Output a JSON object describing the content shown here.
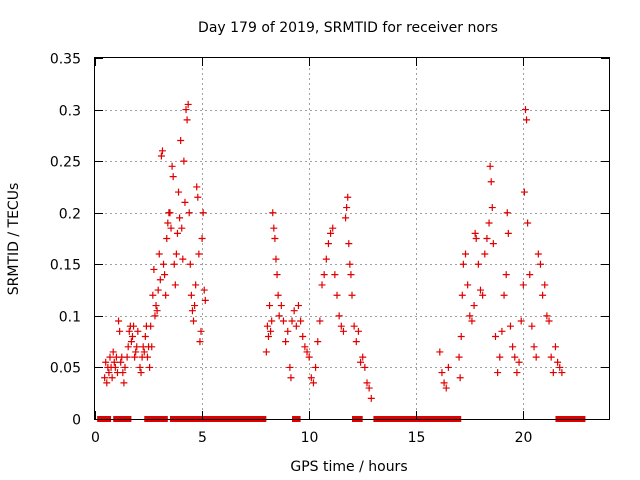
{
  "chart_data": {
    "type": "scatter",
    "title": "Day 179 of 2019, SRMTID for receiver nors",
    "xlabel": "GPS time / hours",
    "ylabel": "SRMTID / TECUs",
    "xlim": [
      0,
      24
    ],
    "ylim": [
      0,
      0.35
    ],
    "xticks": [
      {
        "value": 0,
        "label": "0"
      },
      {
        "value": 5,
        "label": "5"
      },
      {
        "value": 10,
        "label": "10"
      },
      {
        "value": 15,
        "label": "15"
      },
      {
        "value": 20,
        "label": "20"
      }
    ],
    "yticks": [
      {
        "value": 0,
        "label": "0"
      },
      {
        "value": 0.05,
        "label": "0.05"
      },
      {
        "value": 0.1,
        "label": "0.1"
      },
      {
        "value": 0.15,
        "label": "0.15"
      },
      {
        "value": 0.2,
        "label": "0.2"
      },
      {
        "value": 0.25,
        "label": "0.25"
      },
      {
        "value": 0.3,
        "label": "0.3"
      },
      {
        "value": 0.35,
        "label": "0.35"
      }
    ],
    "grid": true,
    "marker": "+",
    "color": "#e00000",
    "zero_intervals": [
      [
        0.1,
        0.75
      ],
      [
        0.85,
        1.7
      ],
      [
        2.3,
        3.4
      ],
      [
        3.5,
        8.0
      ],
      [
        9.2,
        9.6
      ],
      [
        12.0,
        12.5
      ],
      [
        13.0,
        17.1
      ],
      [
        21.5,
        22.9
      ]
    ],
    "series": [
      {
        "name": "SRMTID",
        "points": [
          [
            0.45,
            0.04
          ],
          [
            0.5,
            0.055
          ],
          [
            0.55,
            0.035
          ],
          [
            0.6,
            0.05
          ],
          [
            0.65,
            0.045
          ],
          [
            0.7,
            0.06
          ],
          [
            0.75,
            0.05
          ],
          [
            0.8,
            0.04
          ],
          [
            0.85,
            0.065
          ],
          [
            0.9,
            0.055
          ],
          [
            0.95,
            0.05
          ],
          [
            1.0,
            0.06
          ],
          [
            1.05,
            0.045
          ],
          [
            1.1,
            0.095
          ],
          [
            1.15,
            0.085
          ],
          [
            1.2,
            0.055
          ],
          [
            1.25,
            0.06
          ],
          [
            1.3,
            0.045
          ],
          [
            1.35,
            0.035
          ],
          [
            1.4,
            0.05
          ],
          [
            1.5,
            0.06
          ],
          [
            1.55,
            0.07
          ],
          [
            1.6,
            0.085
          ],
          [
            1.65,
            0.09
          ],
          [
            1.7,
            0.075
          ],
          [
            1.75,
            0.08
          ],
          [
            1.8,
            0.09
          ],
          [
            1.85,
            0.06
          ],
          [
            1.9,
            0.065
          ],
          [
            1.95,
            0.07
          ],
          [
            2.0,
            0.085
          ],
          [
            2.1,
            0.05
          ],
          [
            2.15,
            0.045
          ],
          [
            2.2,
            0.06
          ],
          [
            2.25,
            0.07
          ],
          [
            2.3,
            0.065
          ],
          [
            2.35,
            0.08
          ],
          [
            2.4,
            0.09
          ],
          [
            2.45,
            0.06
          ],
          [
            2.5,
            0.07
          ],
          [
            2.55,
            0.05
          ],
          [
            2.6,
            0.09
          ],
          [
            2.65,
            0.07
          ],
          [
            2.7,
            0.12
          ],
          [
            2.75,
            0.145
          ],
          [
            2.8,
            0.1
          ],
          [
            2.85,
            0.11
          ],
          [
            2.9,
            0.105
          ],
          [
            2.95,
            0.125
          ],
          [
            3.0,
            0.16
          ],
          [
            3.05,
            0.135
          ],
          [
            3.1,
            0.255
          ],
          [
            3.15,
            0.26
          ],
          [
            3.2,
            0.15
          ],
          [
            3.25,
            0.14
          ],
          [
            3.3,
            0.12
          ],
          [
            3.35,
            0.175
          ],
          [
            3.4,
            0.19
          ],
          [
            3.45,
            0.2
          ],
          [
            3.5,
            0.2
          ],
          [
            3.55,
            0.185
          ],
          [
            3.6,
            0.245
          ],
          [
            3.65,
            0.235
          ],
          [
            3.7,
            0.15
          ],
          [
            3.75,
            0.13
          ],
          [
            3.8,
            0.16
          ],
          [
            3.85,
            0.18
          ],
          [
            3.9,
            0.22
          ],
          [
            3.95,
            0.195
          ],
          [
            4.0,
            0.27
          ],
          [
            4.05,
            0.185
          ],
          [
            4.1,
            0.155
          ],
          [
            4.15,
            0.25
          ],
          [
            4.2,
            0.21
          ],
          [
            4.25,
            0.3
          ],
          [
            4.3,
            0.29
          ],
          [
            4.35,
            0.305
          ],
          [
            4.4,
            0.2
          ],
          [
            4.45,
            0.15
          ],
          [
            4.5,
            0.12
          ],
          [
            4.55,
            0.105
          ],
          [
            4.6,
            0.095
          ],
          [
            4.65,
            0.11
          ],
          [
            4.7,
            0.13
          ],
          [
            4.75,
            0.225
          ],
          [
            4.8,
            0.215
          ],
          [
            4.85,
            0.16
          ],
          [
            4.9,
            0.075
          ],
          [
            4.95,
            0.085
          ],
          [
            5.0,
            0.175
          ],
          [
            5.05,
            0.2
          ],
          [
            5.1,
            0.125
          ],
          [
            5.15,
            0.115
          ],
          [
            8.0,
            0.065
          ],
          [
            8.05,
            0.09
          ],
          [
            8.1,
            0.08
          ],
          [
            8.15,
            0.11
          ],
          [
            8.2,
            0.085
          ],
          [
            8.25,
            0.095
          ],
          [
            8.3,
            0.2
          ],
          [
            8.35,
            0.185
          ],
          [
            8.4,
            0.175
          ],
          [
            8.45,
            0.155
          ],
          [
            8.5,
            0.14
          ],
          [
            8.55,
            0.12
          ],
          [
            8.6,
            0.1
          ],
          [
            8.7,
            0.11
          ],
          [
            8.8,
            0.095
          ],
          [
            8.9,
            0.075
          ],
          [
            9.0,
            0.085
          ],
          [
            9.1,
            0.05
          ],
          [
            9.15,
            0.04
          ],
          [
            9.2,
            0.095
          ],
          [
            9.3,
            0.105
          ],
          [
            9.4,
            0.09
          ],
          [
            9.5,
            0.11
          ],
          [
            9.6,
            0.095
          ],
          [
            9.7,
            0.08
          ],
          [
            9.8,
            0.07
          ],
          [
            9.9,
            0.065
          ],
          [
            10.0,
            0.06
          ],
          [
            10.1,
            0.04
          ],
          [
            10.2,
            0.035
          ],
          [
            10.3,
            0.05
          ],
          [
            10.4,
            0.075
          ],
          [
            10.5,
            0.095
          ],
          [
            10.6,
            0.13
          ],
          [
            10.7,
            0.14
          ],
          [
            10.8,
            0.155
          ],
          [
            10.9,
            0.17
          ],
          [
            11.0,
            0.18
          ],
          [
            11.1,
            0.185
          ],
          [
            11.2,
            0.14
          ],
          [
            11.3,
            0.12
          ],
          [
            11.4,
            0.1
          ],
          [
            11.5,
            0.09
          ],
          [
            11.6,
            0.085
          ],
          [
            11.7,
            0.195
          ],
          [
            11.75,
            0.205
          ],
          [
            11.8,
            0.215
          ],
          [
            11.85,
            0.17
          ],
          [
            11.9,
            0.15
          ],
          [
            11.95,
            0.14
          ],
          [
            12.0,
            0.12
          ],
          [
            12.1,
            0.09
          ],
          [
            12.2,
            0.075
          ],
          [
            12.3,
            0.085
          ],
          [
            12.4,
            0.055
          ],
          [
            12.5,
            0.06
          ],
          [
            12.6,
            0.05
          ],
          [
            12.7,
            0.035
          ],
          [
            12.8,
            0.03
          ],
          [
            12.9,
            0.02
          ],
          [
            16.1,
            0.065
          ],
          [
            16.2,
            0.045
          ],
          [
            16.3,
            0.035
          ],
          [
            16.4,
            0.03
          ],
          [
            16.5,
            0.05
          ],
          [
            17.0,
            0.06
          ],
          [
            17.05,
            0.04
          ],
          [
            17.1,
            0.08
          ],
          [
            17.15,
            0.12
          ],
          [
            17.2,
            0.15
          ],
          [
            17.3,
            0.16
          ],
          [
            17.4,
            0.13
          ],
          [
            17.5,
            0.1
          ],
          [
            17.6,
            0.095
          ],
          [
            17.7,
            0.11
          ],
          [
            17.75,
            0.18
          ],
          [
            17.8,
            0.175
          ],
          [
            17.9,
            0.15
          ],
          [
            18.0,
            0.125
          ],
          [
            18.1,
            0.12
          ],
          [
            18.2,
            0.16
          ],
          [
            18.3,
            0.175
          ],
          [
            18.4,
            0.19
          ],
          [
            18.45,
            0.245
          ],
          [
            18.5,
            0.23
          ],
          [
            18.55,
            0.205
          ],
          [
            18.6,
            0.17
          ],
          [
            18.7,
            0.08
          ],
          [
            18.8,
            0.045
          ],
          [
            18.9,
            0.06
          ],
          [
            19.0,
            0.085
          ],
          [
            19.1,
            0.12
          ],
          [
            19.2,
            0.14
          ],
          [
            19.25,
            0.2
          ],
          [
            19.3,
            0.18
          ],
          [
            19.4,
            0.09
          ],
          [
            19.5,
            0.07
          ],
          [
            19.6,
            0.06
          ],
          [
            19.7,
            0.045
          ],
          [
            19.8,
            0.055
          ],
          [
            19.9,
            0.095
          ],
          [
            20.0,
            0.13
          ],
          [
            20.05,
            0.22
          ],
          [
            20.1,
            0.3
          ],
          [
            20.15,
            0.29
          ],
          [
            20.2,
            0.19
          ],
          [
            20.3,
            0.14
          ],
          [
            20.4,
            0.09
          ],
          [
            20.5,
            0.07
          ],
          [
            20.6,
            0.06
          ],
          [
            20.7,
            0.16
          ],
          [
            20.8,
            0.15
          ],
          [
            20.9,
            0.12
          ],
          [
            21.0,
            0.13
          ],
          [
            21.1,
            0.1
          ],
          [
            21.2,
            0.095
          ],
          [
            21.3,
            0.06
          ],
          [
            21.4,
            0.045
          ],
          [
            21.5,
            0.07
          ],
          [
            21.6,
            0.055
          ],
          [
            21.7,
            0.05
          ],
          [
            21.8,
            0.045
          ]
        ]
      }
    ]
  }
}
